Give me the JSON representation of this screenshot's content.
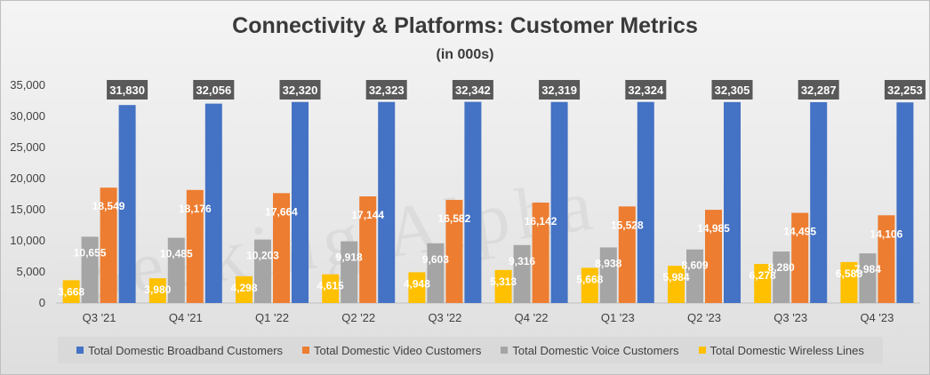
{
  "chart_data": {
    "type": "bar",
    "title": "Connectivity & Platforms: Customer Metrics",
    "subtitle": "(in 000s)",
    "categories": [
      "Q3 '21",
      "Q4 '21",
      "Q1 '22",
      "Q2 '22",
      "Q3 '22",
      "Q4 '22",
      "Q1 '23",
      "Q2 '23",
      "Q3 '23",
      "Q4 '23"
    ],
    "series": [
      {
        "name": "Total Domestic Broadband Customers",
        "color": "#4472c4",
        "values": [
          31830,
          32056,
          32320,
          32323,
          32342,
          32319,
          32324,
          32305,
          32287,
          32253
        ]
      },
      {
        "name": "Total Domestic Video Customers",
        "color": "#ed7d31",
        "values": [
          18549,
          18176,
          17664,
          17144,
          16582,
          16142,
          15528,
          14985,
          14495,
          14106
        ]
      },
      {
        "name": "Total Domestic Voice Customers",
        "color": "#a5a5a5",
        "values": [
          10655,
          10485,
          10203,
          9918,
          9603,
          9316,
          8938,
          8609,
          8280,
          7984
        ]
      },
      {
        "name": "Total Domestic Wireless Lines",
        "color": "#ffc000",
        "values": [
          3668,
          3980,
          4298,
          4615,
          4948,
          5313,
          5668,
          5984,
          6278,
          6588
        ]
      }
    ],
    "ylim": [
      0,
      35000
    ],
    "yticks": [
      0,
      5000,
      10000,
      15000,
      20000,
      25000,
      30000,
      35000
    ],
    "ytick_labels": [
      "0",
      "5,000",
      "10,000",
      "15,000",
      "20,000",
      "25,000",
      "30,000",
      "35,000"
    ],
    "grid": false,
    "legend_position": "bottom"
  },
  "watermark": "Seeking Alpha"
}
